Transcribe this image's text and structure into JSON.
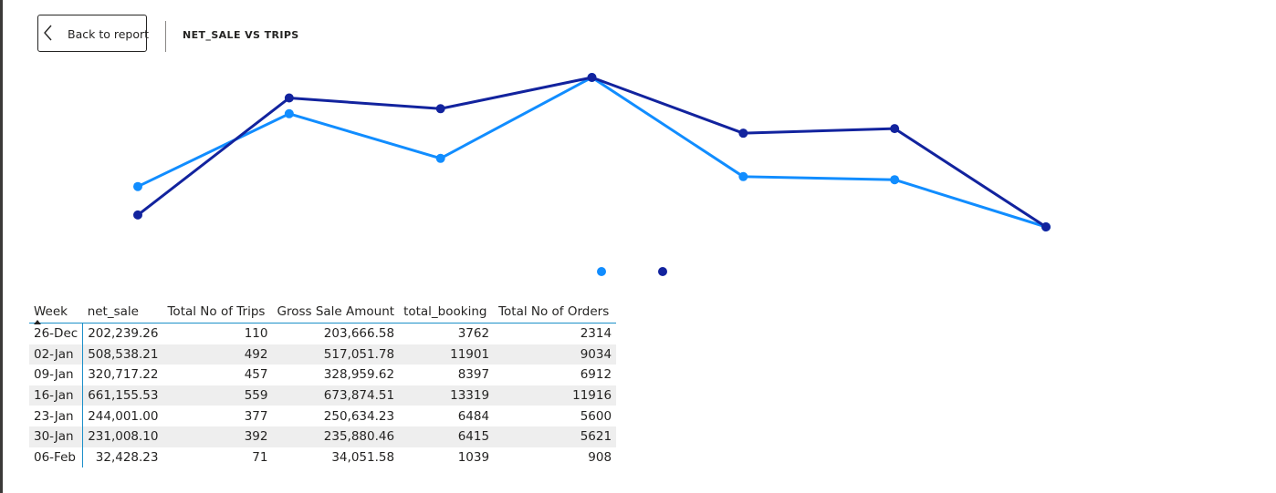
{
  "header": {
    "back_label": "Back to report",
    "visual_title": "NET_SALE VS TRIPS"
  },
  "colors": {
    "series_light": "#118dff",
    "series_dark": "#12239e",
    "accent_border": "#1b8fc9",
    "alt_row": "#eeeeee"
  },
  "chart_data": {
    "type": "line",
    "categories": [
      "26-Dec",
      "02-Jan",
      "09-Jan",
      "16-Jan",
      "23-Jan",
      "30-Jan",
      "06-Feb"
    ],
    "series": [
      {
        "color": "#118dff",
        "values": [
          202239.26,
          508538.21,
          320717.22,
          661155.53,
          244001.0,
          231008.1,
          32428.23
        ]
      },
      {
        "color": "#12239e",
        "values": [
          110,
          492,
          457,
          559,
          377,
          392,
          71
        ]
      }
    ],
    "axes_visible": false,
    "legend": {
      "placement": "bottom-center",
      "entries": 2
    }
  },
  "table": {
    "columns": [
      "Week",
      "net_sale",
      "Total No of Trips",
      "Gross Sale Amount",
      "total_booking",
      "Total No of Orders"
    ],
    "rows": [
      [
        "26-Dec",
        "202,239.26",
        "110",
        "203,666.58",
        "3762",
        "2314"
      ],
      [
        "02-Jan",
        "508,538.21",
        "492",
        "517,051.78",
        "11901",
        "9034"
      ],
      [
        "09-Jan",
        "320,717.22",
        "457",
        "328,959.62",
        "8397",
        "6912"
      ],
      [
        "16-Jan",
        "661,155.53",
        "559",
        "673,874.51",
        "13319",
        "11916"
      ],
      [
        "23-Jan",
        "244,001.00",
        "377",
        "250,634.23",
        "6484",
        "5600"
      ],
      [
        "30-Jan",
        "231,008.10",
        "392",
        "235,880.46",
        "6415",
        "5621"
      ],
      [
        "06-Feb",
        "32,428.23",
        "71",
        "34,051.58",
        "1039",
        "908"
      ]
    ]
  }
}
